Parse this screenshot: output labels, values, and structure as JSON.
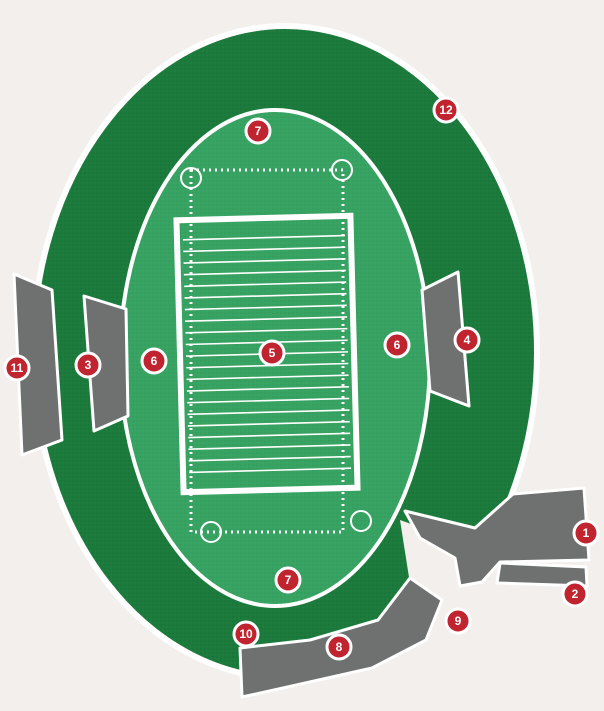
{
  "colors": {
    "background": "#f2efec",
    "outer_concourse": "#1b7a3c",
    "inner_field": "#37a362",
    "seating": "#6f7170",
    "marker": "#c0242f",
    "marker_text": "#ffffff",
    "lines": "#ffffff"
  },
  "markers": [
    {
      "id": "1",
      "label": "1"
    },
    {
      "id": "2",
      "label": "2"
    },
    {
      "id": "3",
      "label": "3"
    },
    {
      "id": "4",
      "label": "4"
    },
    {
      "id": "5",
      "label": "5"
    },
    {
      "id": "6a",
      "label": "6"
    },
    {
      "id": "6b",
      "label": "6"
    },
    {
      "id": "7a",
      "label": "7"
    },
    {
      "id": "7b",
      "label": "7"
    },
    {
      "id": "8",
      "label": "8"
    },
    {
      "id": "9",
      "label": "9"
    },
    {
      "id": "10",
      "label": "10"
    },
    {
      "id": "11",
      "label": "11"
    },
    {
      "id": "12",
      "label": "12"
    }
  ]
}
